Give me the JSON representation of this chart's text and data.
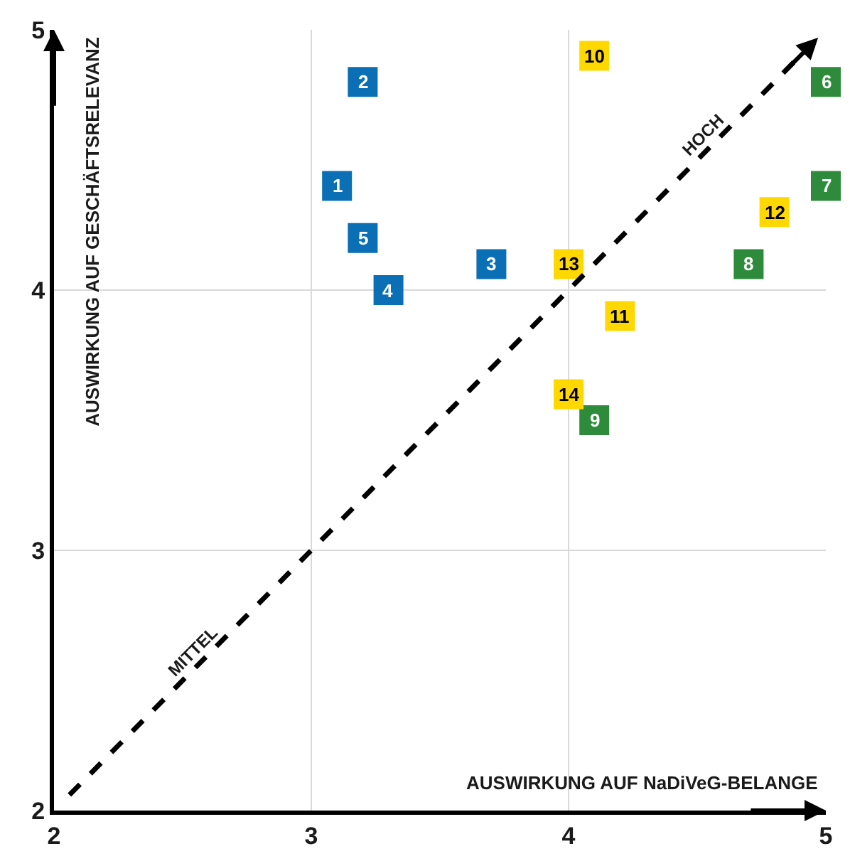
{
  "chart_data": {
    "type": "scatter",
    "xlabel": "AUSWIRKUNG AUF NaDiVeG-BELANGE",
    "ylabel": "AUSWIRKUNG AUF GESCHÄFTSRELEVANZ",
    "xlim": [
      2,
      5
    ],
    "ylim": [
      2,
      5
    ],
    "xticks": [
      2,
      3,
      4,
      5
    ],
    "yticks": [
      2,
      3,
      4,
      5
    ],
    "grid": true,
    "marker": "square",
    "series": [
      {
        "color": "#0a6fb5",
        "x": [
          3.1,
          3.2,
          3.7,
          3.3,
          3.2
        ],
        "values": [
          4.4,
          4.8,
          4.1,
          4.0,
          4.2
        ]
      },
      {
        "color": "#2e8b3c",
        "x": [
          5.0,
          5.0,
          4.7,
          4.1
        ],
        "values": [
          4.8,
          4.4,
          4.1,
          3.5
        ]
      },
      {
        "color": "#ffd800",
        "x": [
          4.1,
          4.2,
          4.8,
          4.0,
          4.0
        ],
        "values": [
          4.9,
          3.9,
          4.3,
          4.1,
          3.6
        ]
      }
    ],
    "annotations": [
      {
        "text": "1",
        "x": 3.1,
        "y": 4.4
      },
      {
        "text": "2",
        "x": 3.2,
        "y": 4.8
      },
      {
        "text": "3",
        "x": 3.7,
        "y": 4.1
      },
      {
        "text": "4",
        "x": 3.3,
        "y": 4.0
      },
      {
        "text": "5",
        "x": 3.2,
        "y": 4.2
      },
      {
        "text": "6",
        "x": 5.0,
        "y": 4.8
      },
      {
        "text": "7",
        "x": 5.0,
        "y": 4.4
      },
      {
        "text": "8",
        "x": 4.7,
        "y": 4.1
      },
      {
        "text": "9",
        "x": 4.1,
        "y": 3.5
      },
      {
        "text": "10",
        "x": 4.1,
        "y": 4.9
      },
      {
        "text": "11",
        "x": 4.2,
        "y": 3.9
      },
      {
        "text": "12",
        "x": 4.8,
        "y": 4.3
      },
      {
        "text": "13",
        "x": 4.0,
        "y": 4.1
      },
      {
        "text": "14",
        "x": 4.0,
        "y": 3.6
      },
      "MITTEL",
      "HOCH"
    ]
  }
}
